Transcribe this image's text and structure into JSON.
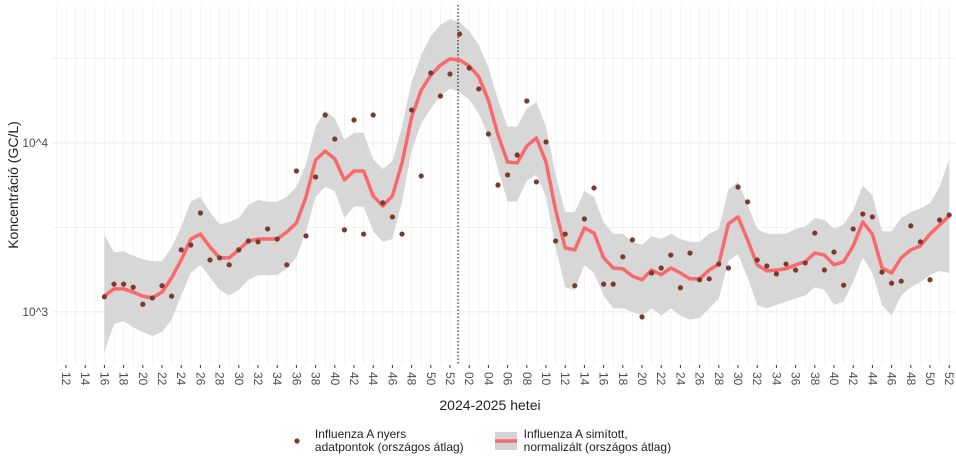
{
  "chart_data": {
    "type": "line",
    "x_label": "2024-2025 hetei",
    "y_label": "Koncentráció (GC/L)",
    "log_y": true,
    "grid": true,
    "legend": "bottom",
    "ylim": [
      485,
      65600
    ],
    "yticks": [
      {
        "value": 1000,
        "label": "10^3"
      },
      {
        "value": 10000,
        "label": "10^4"
      }
    ],
    "categories": [
      null,
      "12",
      null,
      "14",
      null,
      "16",
      null,
      "18",
      null,
      "20",
      null,
      "22",
      null,
      "24",
      null,
      "26",
      null,
      "28",
      null,
      "30",
      null,
      "32",
      null,
      "34",
      null,
      "36",
      null,
      "38",
      null,
      "40",
      null,
      "42",
      null,
      "44",
      null,
      "46",
      null,
      "48",
      null,
      "50",
      null,
      "52",
      null,
      "02",
      null,
      "04",
      null,
      "06",
      null,
      "08",
      null,
      "10",
      null,
      "12",
      null,
      "14",
      null,
      "16",
      null,
      "18",
      null,
      "20",
      null,
      "22",
      null,
      "24",
      null,
      "26",
      null,
      "28",
      null,
      "30",
      null,
      "32",
      null,
      "34",
      null,
      "36",
      null,
      "38",
      null,
      "40",
      null,
      "42",
      null,
      "44",
      null,
      "46",
      null,
      "48",
      null,
      "50",
      null,
      "52"
    ],
    "series": [
      {
        "name": "Influenza A nyers\nadatpontok (országos átlag)",
        "type": "scatter",
        "color": "#7b3a2e",
        "values": [
          null,
          null,
          null,
          null,
          null,
          1230,
          1460,
          1460,
          1400,
          1110,
          1210,
          1430,
          1240,
          2330,
          2490,
          3850,
          2030,
          2090,
          1900,
          2330,
          2630,
          2600,
          3100,
          2700,
          1900,
          6830,
          2820,
          6290,
          14650,
          10560,
          3060,
          13680,
          2890,
          14650,
          4420,
          3650,
          2890,
          15670,
          6380,
          25960,
          18970,
          25600,
          44160,
          27800,
          20890,
          11300,
          5640,
          6470,
          8490,
          17730,
          5880,
          10140,
          2630,
          2890,
          1430,
          3550,
          5420,
          1460,
          1460,
          2120,
          2670,
          934,
          1700,
          1820,
          2170,
          1390,
          2230,
          1550,
          1570,
          1920,
          1820,
          5490,
          4480,
          2030,
          1870,
          1680,
          1920,
          1770,
          1950,
          2930,
          1770,
          2260,
          1440,
          3100,
          3800,
          3650,
          1720,
          1480,
          1520,
          3230,
          2600,
          1550,
          3500,
          3750
        ]
      },
      {
        "name": "Influenza A simított,\n normalizált (országos átlag)",
        "type": "line",
        "color": "#f8696b",
        "band_color": "#d3d3d3",
        "values": [
          null,
          null,
          null,
          null,
          null,
          1240,
          1370,
          1370,
          1310,
          1240,
          1210,
          1310,
          1590,
          2030,
          2700,
          2890,
          2420,
          2090,
          2090,
          2330,
          2630,
          2700,
          2700,
          2700,
          2970,
          3360,
          4790,
          7930,
          8960,
          8050,
          6050,
          6830,
          6830,
          4860,
          4240,
          4860,
          7620,
          14220,
          20540,
          25210,
          28900,
          31500,
          31000,
          28600,
          24600,
          17900,
          11150,
          7720,
          7620,
          9600,
          10700,
          7720,
          4020,
          2390,
          2330,
          3140,
          2930,
          2090,
          1820,
          1800,
          1630,
          1550,
          1770,
          1660,
          1820,
          1700,
          1570,
          1570,
          1770,
          1920,
          3320,
          3650,
          2670,
          1900,
          1750,
          1770,
          1800,
          1900,
          1980,
          2230,
          2170,
          1900,
          1980,
          2460,
          3410,
          2890,
          1820,
          1700,
          2090,
          2330,
          2460,
          2890,
          3270,
          3700
        ],
        "lower": [
          null,
          null,
          null,
          null,
          null,
          580,
          850,
          880,
          810,
          760,
          720,
          760,
          900,
          1250,
          1700,
          1900,
          1600,
          1350,
          1250,
          1350,
          1550,
          1650,
          1650,
          1650,
          1800,
          2100,
          3000,
          4800,
          5500,
          5200,
          3600,
          4200,
          4200,
          3000,
          2600,
          2700,
          4500,
          9000,
          13000,
          16000,
          19000,
          21000,
          20000,
          18000,
          15000,
          11000,
          7000,
          4500,
          4500,
          6000,
          6500,
          4800,
          2400,
          1400,
          1350,
          1900,
          1700,
          1250,
          1050,
          1050,
          1000,
          950,
          1050,
          950,
          1050,
          950,
          900,
          920,
          1050,
          1200,
          2000,
          2200,
          1600,
          1100,
          1050,
          1100,
          1150,
          1200,
          1250,
          1400,
          1350,
          1100,
          1150,
          1500,
          2100,
          1700,
          1100,
          950,
          1250,
          1400,
          1500,
          1650,
          1750,
          1700
        ],
        "upper": [
          null,
          null,
          null,
          null,
          null,
          2860,
          2250,
          2280,
          2150,
          2050,
          2000,
          2000,
          2400,
          3200,
          4500,
          4800,
          3900,
          3300,
          3400,
          3600,
          4300,
          4600,
          4500,
          4500,
          4800,
          5500,
          7500,
          12500,
          15500,
          14000,
          10500,
          11500,
          11500,
          8000,
          7000,
          7800,
          12500,
          23000,
          33000,
          43000,
          50000,
          54000,
          52000,
          46000,
          38000,
          28000,
          18000,
          12500,
          12500,
          16000,
          17500,
          12500,
          6500,
          3900,
          3900,
          5200,
          4800,
          3400,
          2900,
          2900,
          2600,
          2500,
          2800,
          2700,
          2900,
          2700,
          2600,
          2600,
          2900,
          3100,
          5300,
          5900,
          4300,
          3100,
          2900,
          2900,
          2900,
          3100,
          3200,
          3600,
          3500,
          3100,
          3300,
          4000,
          5600,
          4900,
          3000,
          3000,
          3600,
          3900,
          4100,
          4400,
          5500,
          8000
        ]
      }
    ]
  }
}
